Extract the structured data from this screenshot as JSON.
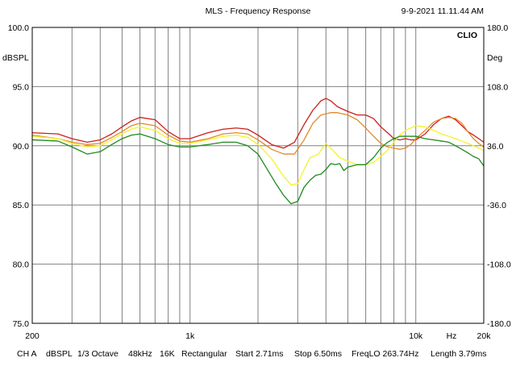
{
  "chart_data": {
    "type": "line",
    "title": "MLS - Frequency Response",
    "timestamp": "9-9-2021 11.11.44 AM",
    "brand": "CLIO",
    "ylabel_left": "dBSPL",
    "ylabel_right": "Deg",
    "xlabel": "Hz",
    "x_scale": "log",
    "xlim": [
      200,
      20000
    ],
    "ylim": [
      75,
      100
    ],
    "y2lim": [
      -180,
      180
    ],
    "grid": true,
    "y_ticks": [
      {
        "value": 100,
        "label": "100.0"
      },
      {
        "value": 95,
        "label": "95.0"
      },
      {
        "value": 90,
        "label": "90.0"
      },
      {
        "value": 85,
        "label": "85.0"
      },
      {
        "value": 80,
        "label": "80.0"
      },
      {
        "value": 75,
        "label": "75.0"
      }
    ],
    "y2_ticks": [
      {
        "value": 180,
        "label": "180.0"
      },
      {
        "value": 108,
        "label": "108.0"
      },
      {
        "value": 36,
        "label": "36.0"
      },
      {
        "value": -36,
        "label": "-36.0"
      },
      {
        "value": -108,
        "label": "-108.0"
      },
      {
        "value": -180,
        "label": "-180.0"
      }
    ],
    "x_tick_labels": [
      {
        "value": 200,
        "label": "200"
      },
      {
        "value": 1000,
        "label": "1k"
      },
      {
        "value": 10000,
        "label": "10k"
      },
      {
        "value": 20000,
        "label": "20k"
      }
    ],
    "x_gridlines": [
      300,
      400,
      500,
      600,
      700,
      800,
      900,
      1000,
      2000,
      3000,
      4000,
      5000,
      6000,
      7000,
      8000,
      9000,
      10000
    ],
    "plot_background": "#ffffff",
    "grid_color": "#808080",
    "series": [
      {
        "color": "#cc1f1f",
        "x": [
          200,
          260,
          300,
          350,
          400,
          450,
          500,
          550,
          600,
          700,
          800,
          900,
          1000,
          1200,
          1400,
          1600,
          1800,
          2000,
          2300,
          2600,
          2900,
          3200,
          3500,
          3800,
          4000,
          4200,
          4500,
          5000,
          5500,
          6000,
          6500,
          7000,
          7500,
          8000,
          8500,
          9000,
          9500,
          10000,
          11000,
          12000,
          13000,
          14000,
          15000,
          16000,
          17000,
          18000,
          19000,
          20000
        ],
        "y": [
          91.1,
          91.0,
          90.6,
          90.3,
          90.5,
          91.0,
          91.6,
          92.1,
          92.4,
          92.2,
          91.2,
          90.6,
          90.6,
          91.1,
          91.4,
          91.5,
          91.4,
          90.9,
          90.1,
          89.8,
          90.3,
          91.8,
          93.0,
          93.8,
          94.0,
          93.8,
          93.3,
          92.9,
          92.6,
          92.6,
          92.3,
          91.6,
          91.1,
          90.6,
          90.5,
          90.6,
          90.5,
          90.5,
          91.0,
          91.8,
          92.3,
          92.5,
          92.2,
          91.7,
          91.2,
          90.9,
          90.6,
          90.3
        ]
      },
      {
        "color": "#e08a2a",
        "x": [
          200,
          260,
          300,
          350,
          400,
          450,
          500,
          550,
          600,
          700,
          800,
          900,
          1000,
          1200,
          1400,
          1600,
          1800,
          2000,
          2300,
          2600,
          2900,
          3200,
          3500,
          3800,
          4000,
          4200,
          4500,
          5000,
          5500,
          6000,
          6500,
          7000,
          7500,
          8000,
          8500,
          9000,
          9500,
          10000,
          11000,
          12000,
          13000,
          14000,
          15000,
          16000,
          17000,
          18000,
          19000,
          20000
        ],
        "y": [
          90.9,
          90.6,
          90.3,
          90.1,
          90.2,
          90.7,
          91.2,
          91.7,
          91.9,
          91.7,
          90.9,
          90.4,
          90.3,
          90.6,
          91.0,
          91.1,
          91.0,
          90.5,
          89.7,
          89.3,
          89.3,
          90.5,
          91.9,
          92.6,
          92.7,
          92.8,
          92.8,
          92.6,
          92.2,
          91.5,
          90.8,
          90.2,
          89.9,
          89.8,
          89.7,
          89.8,
          90.1,
          90.6,
          91.3,
          92.0,
          92.3,
          92.4,
          92.3,
          91.9,
          91.2,
          90.6,
          90.2,
          89.9
        ]
      },
      {
        "color": "#f3f32a",
        "x": [
          200,
          260,
          300,
          350,
          400,
          450,
          500,
          550,
          600,
          700,
          800,
          900,
          1000,
          1200,
          1400,
          1600,
          1800,
          2000,
          2300,
          2600,
          2800,
          3000,
          3200,
          3400,
          3700,
          4000,
          4300,
          4600,
          5000,
          5500,
          6000,
          6500,
          7000,
          7500,
          8000,
          8500,
          9000,
          9500,
          10000,
          11000,
          12000,
          13000,
          14000,
          15000,
          16000,
          17000,
          18000,
          19000,
          20000
        ],
        "y": [
          90.8,
          90.6,
          90.2,
          89.9,
          90.0,
          90.5,
          91.0,
          91.4,
          91.6,
          91.3,
          90.6,
          90.2,
          90.2,
          90.5,
          90.8,
          90.9,
          90.7,
          90.1,
          88.9,
          87.4,
          86.7,
          86.8,
          88.0,
          89.0,
          89.3,
          90.2,
          89.6,
          89.0,
          88.7,
          88.4,
          88.4,
          88.6,
          89.1,
          89.6,
          90.3,
          90.9,
          91.3,
          91.5,
          91.7,
          91.6,
          91.3,
          91.0,
          90.8,
          90.6,
          90.4,
          90.2,
          90.0,
          89.8,
          89.6
        ]
      },
      {
        "color": "#1f8a1f",
        "x": [
          200,
          260,
          300,
          350,
          400,
          450,
          500,
          550,
          600,
          700,
          800,
          900,
          1000,
          1200,
          1400,
          1600,
          1800,
          2000,
          2200,
          2400,
          2600,
          2800,
          3000,
          3200,
          3400,
          3600,
          3800,
          4000,
          4200,
          4400,
          4600,
          4800,
          5000,
          5500,
          6000,
          6500,
          7000,
          7500,
          8000,
          8500,
          9000,
          9500,
          10000,
          11000,
          12000,
          13000,
          14000,
          15000,
          16000,
          17000,
          18000,
          19000,
          20000
        ],
        "y": [
          90.5,
          90.4,
          89.9,
          89.3,
          89.5,
          90.1,
          90.6,
          90.9,
          91.0,
          90.6,
          90.1,
          89.9,
          89.9,
          90.1,
          90.3,
          90.3,
          90.0,
          89.3,
          88.0,
          86.8,
          85.8,
          85.1,
          85.3,
          86.5,
          87.1,
          87.5,
          87.6,
          88.0,
          88.5,
          88.4,
          88.5,
          87.9,
          88.2,
          88.4,
          88.4,
          89.0,
          89.8,
          90.3,
          90.6,
          90.8,
          90.8,
          90.8,
          90.8,
          90.6,
          90.5,
          90.4,
          90.3,
          90.0,
          89.7,
          89.4,
          89.1,
          88.9,
          88.3
        ]
      }
    ]
  },
  "footer": {
    "channel": "CH A",
    "unit": "dBSPL",
    "smoothing": "1/3 Octave",
    "sample_rate": "48kHz",
    "fft_size": "16K",
    "window": "Rectangular",
    "start": "Start 2.71ms",
    "stop": "Stop 6.50ms",
    "freq_lo": "FreqLO 263.74Hz",
    "length": "Length 3.79ms"
  }
}
